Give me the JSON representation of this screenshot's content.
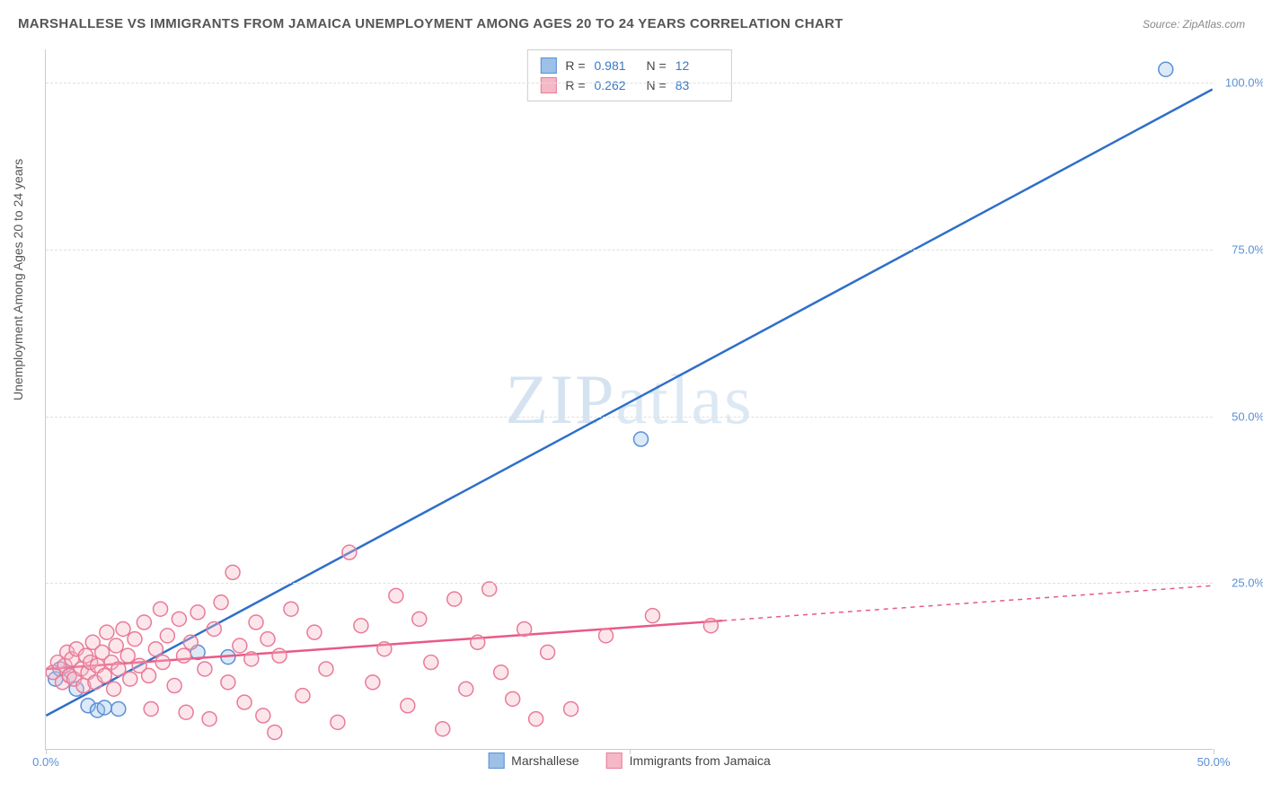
{
  "title": "MARSHALLESE VS IMMIGRANTS FROM JAMAICA UNEMPLOYMENT AMONG AGES 20 TO 24 YEARS CORRELATION CHART",
  "source_prefix": "Source: ",
  "source": "ZipAtlas.com",
  "y_axis_title": "Unemployment Among Ages 20 to 24 years",
  "watermark": "ZIPatlas",
  "chart": {
    "type": "scatter",
    "xlim": [
      0,
      50
    ],
    "ylim": [
      0,
      105
    ],
    "x_ticks": [
      0,
      25,
      50
    ],
    "x_tick_labels": [
      "0.0%",
      "",
      "50.0%"
    ],
    "y_ticks": [
      25,
      50,
      75,
      100
    ],
    "y_tick_labels": [
      "25.0%",
      "50.0%",
      "75.0%",
      "100.0%"
    ],
    "background_color": "#ffffff",
    "grid_color": "#e0e0e0",
    "axis_color": "#cccccc",
    "tick_label_color": "#5a8fd6",
    "axis_title_color": "#555555",
    "tick_fontsize": 13,
    "axis_title_fontsize": 14,
    "marker_radius": 8,
    "marker_border_width": 1.5,
    "marker_fill_opacity": 0.35,
    "regression_line_width": 2.5,
    "series": [
      {
        "name": "Marshallese",
        "color_fill": "#9cc0e8",
        "color_border": "#5a8fd6",
        "line_color": "#2e6fc9",
        "R": "0.981",
        "N": "12",
        "points": [
          [
            0.4,
            10.5
          ],
          [
            0.6,
            12.0
          ],
          [
            1.0,
            11.0
          ],
          [
            1.3,
            9.0
          ],
          [
            1.8,
            6.5
          ],
          [
            2.2,
            5.8
          ],
          [
            2.5,
            6.2
          ],
          [
            3.1,
            6.0
          ],
          [
            6.5,
            14.5
          ],
          [
            7.8,
            13.8
          ],
          [
            25.5,
            46.5
          ],
          [
            48.0,
            102.0
          ]
        ],
        "regression": {
          "x1": 0,
          "y1": 5.0,
          "x2": 50,
          "y2": 99.0,
          "dash_from_x": null
        }
      },
      {
        "name": "Immigrants from Jamaica",
        "color_fill": "#f5b8c6",
        "color_border": "#e87b98",
        "line_color": "#e85a85",
        "R": "0.262",
        "N": "83",
        "points": [
          [
            0.3,
            11.5
          ],
          [
            0.5,
            13.0
          ],
          [
            0.7,
            10.0
          ],
          [
            0.8,
            12.5
          ],
          [
            0.9,
            14.5
          ],
          [
            1.0,
            11.0
          ],
          [
            1.1,
            13.5
          ],
          [
            1.2,
            10.5
          ],
          [
            1.3,
            15.0
          ],
          [
            1.5,
            12.0
          ],
          [
            1.6,
            9.5
          ],
          [
            1.7,
            14.0
          ],
          [
            1.8,
            11.5
          ],
          [
            1.9,
            13.0
          ],
          [
            2.0,
            16.0
          ],
          [
            2.1,
            10.0
          ],
          [
            2.2,
            12.5
          ],
          [
            2.4,
            14.5
          ],
          [
            2.5,
            11.0
          ],
          [
            2.6,
            17.5
          ],
          [
            2.8,
            13.0
          ],
          [
            2.9,
            9.0
          ],
          [
            3.0,
            15.5
          ],
          [
            3.1,
            12.0
          ],
          [
            3.3,
            18.0
          ],
          [
            3.5,
            14.0
          ],
          [
            3.6,
            10.5
          ],
          [
            3.8,
            16.5
          ],
          [
            4.0,
            12.5
          ],
          [
            4.2,
            19.0
          ],
          [
            4.4,
            11.0
          ],
          [
            4.5,
            6.0
          ],
          [
            4.7,
            15.0
          ],
          [
            4.9,
            21.0
          ],
          [
            5.0,
            13.0
          ],
          [
            5.2,
            17.0
          ],
          [
            5.5,
            9.5
          ],
          [
            5.7,
            19.5
          ],
          [
            5.9,
            14.0
          ],
          [
            6.0,
            5.5
          ],
          [
            6.2,
            16.0
          ],
          [
            6.5,
            20.5
          ],
          [
            6.8,
            12.0
          ],
          [
            7.0,
            4.5
          ],
          [
            7.2,
            18.0
          ],
          [
            7.5,
            22.0
          ],
          [
            7.8,
            10.0
          ],
          [
            8.0,
            26.5
          ],
          [
            8.3,
            15.5
          ],
          [
            8.5,
            7.0
          ],
          [
            8.8,
            13.5
          ],
          [
            9.0,
            19.0
          ],
          [
            9.3,
            5.0
          ],
          [
            9.5,
            16.5
          ],
          [
            9.8,
            2.5
          ],
          [
            10.0,
            14.0
          ],
          [
            10.5,
            21.0
          ],
          [
            11.0,
            8.0
          ],
          [
            11.5,
            17.5
          ],
          [
            12.0,
            12.0
          ],
          [
            12.5,
            4.0
          ],
          [
            13.0,
            29.5
          ],
          [
            13.5,
            18.5
          ],
          [
            14.0,
            10.0
          ],
          [
            14.5,
            15.0
          ],
          [
            15.0,
            23.0
          ],
          [
            15.5,
            6.5
          ],
          [
            16.0,
            19.5
          ],
          [
            16.5,
            13.0
          ],
          [
            17.0,
            3.0
          ],
          [
            17.5,
            22.5
          ],
          [
            18.0,
            9.0
          ],
          [
            18.5,
            16.0
          ],
          [
            19.0,
            24.0
          ],
          [
            19.5,
            11.5
          ],
          [
            20.0,
            7.5
          ],
          [
            20.5,
            18.0
          ],
          [
            21.0,
            4.5
          ],
          [
            21.5,
            14.5
          ],
          [
            22.5,
            6.0
          ],
          [
            24.0,
            17.0
          ],
          [
            26.0,
            20.0
          ],
          [
            28.5,
            18.5
          ]
        ],
        "regression": {
          "x1": 0,
          "y1": 12.0,
          "x2": 50,
          "y2": 24.5,
          "dash_from_x": 29
        }
      }
    ]
  },
  "stats_box": {
    "rows": [
      {
        "swatch_fill": "#9cc0e8",
        "swatch_border": "#5a8fd6",
        "R_label": "R =",
        "R": "0.981",
        "N_label": "N =",
        "N": "12"
      },
      {
        "swatch_fill": "#f5b8c6",
        "swatch_border": "#e87b98",
        "R_label": "R =",
        "R": "0.262",
        "N_label": "N =",
        "N": "83"
      }
    ]
  },
  "bottom_legend": [
    {
      "swatch_fill": "#9cc0e8",
      "swatch_border": "#5a8fd6",
      "label": "Marshallese"
    },
    {
      "swatch_fill": "#f5b8c6",
      "swatch_border": "#e87b98",
      "label": "Immigrants from Jamaica"
    }
  ]
}
